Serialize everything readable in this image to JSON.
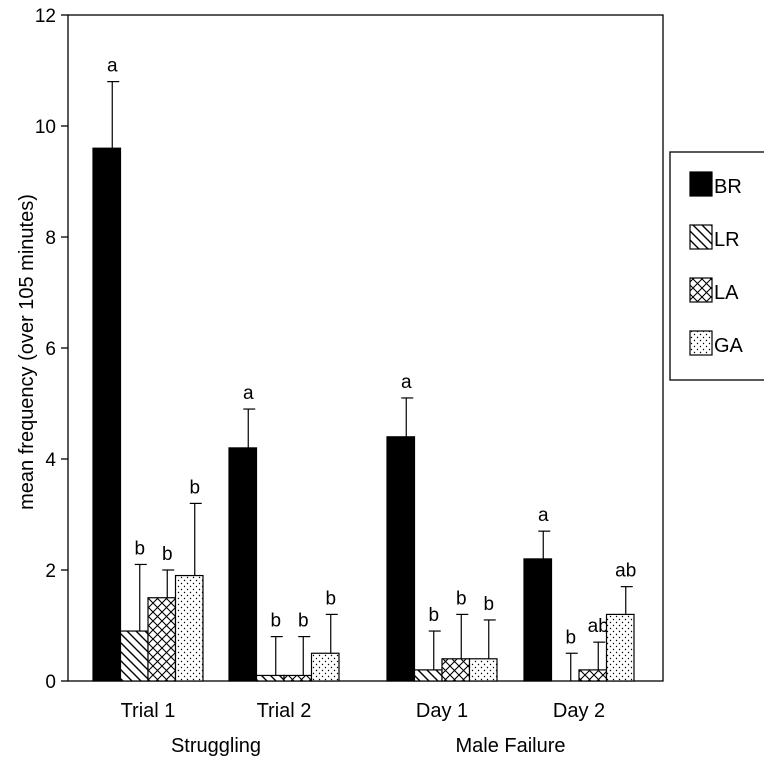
{
  "chart_data": {
    "type": "bar",
    "ylabel": "mean frequency (over 105 minutes)",
    "ylim": [
      0,
      12
    ],
    "yticks": [
      "0",
      "2",
      "4",
      "6",
      "8",
      "10",
      "12"
    ],
    "grid": false,
    "legend_position": "right",
    "categories": [
      "Trial 1",
      "Trial 2",
      "Day 1",
      "Day 2"
    ],
    "groups": [
      {
        "label": "Struggling",
        "categories": [
          "Trial 1",
          "Trial 2"
        ]
      },
      {
        "label": "Male Failure",
        "categories": [
          "Day 1",
          "Day 2"
        ]
      }
    ],
    "series": [
      {
        "name": "BR",
        "pattern": "solid",
        "values": [
          9.6,
          4.2,
          4.4,
          2.2
        ],
        "errors": [
          1.2,
          0.7,
          0.7,
          0.5
        ],
        "letters": [
          "a",
          "a",
          "a",
          "a"
        ]
      },
      {
        "name": "LR",
        "pattern": "diagonal",
        "values": [
          0.9,
          0.1,
          0.2,
          0.0
        ],
        "errors": [
          1.2,
          0.7,
          0.7,
          0.5
        ],
        "letters": [
          "b",
          "b",
          "b",
          "b"
        ]
      },
      {
        "name": "LA",
        "pattern": "crosshatch",
        "values": [
          1.5,
          0.1,
          0.4,
          0.2
        ],
        "errors": [
          0.5,
          0.7,
          0.8,
          0.5
        ],
        "letters": [
          "b",
          "b",
          "b",
          "ab"
        ]
      },
      {
        "name": "GA",
        "pattern": "dots",
        "values": [
          1.9,
          0.5,
          0.4,
          1.2
        ],
        "errors": [
          1.3,
          0.7,
          0.7,
          0.5
        ],
        "letters": [
          "b",
          "b",
          "b",
          "ab"
        ]
      }
    ]
  },
  "colors": {
    "bar_solid": "#000000",
    "pattern_ink": "#000000",
    "background": "#ffffff"
  }
}
